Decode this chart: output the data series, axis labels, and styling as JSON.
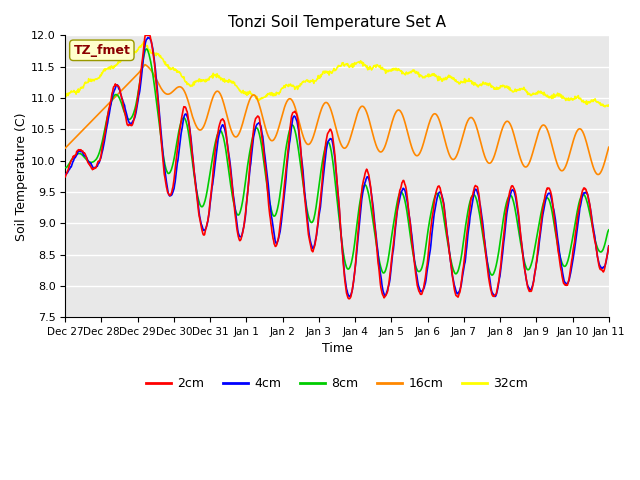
{
  "title": "Tonzi Soil Temperature Set A",
  "xlabel": "Time",
  "ylabel": "Soil Temperature (C)",
  "ylim": [
    7.5,
    12.0
  ],
  "background_color": "#ffffff",
  "plot_bg_color": "#e8e8e8",
  "grid_color": "#ffffff",
  "legend_label": "TZ_fmet",
  "legend_box_color": "#ffffcc",
  "legend_box_edge": "#999900",
  "series_colors": {
    "2cm": "#ff0000",
    "4cm": "#0000ff",
    "8cm": "#00cc00",
    "16cm": "#ff8800",
    "32cm": "#ffff00"
  },
  "xtick_labels": [
    "Dec 27",
    "Dec 28",
    "Dec 29",
    "Dec 30",
    "Dec 31",
    "Jan 1",
    "Jan 2",
    "Jan 3",
    "Jan 4",
    "Jan 5",
    "Jan 6",
    "Jan 7",
    "Jan 8",
    "Jan 9",
    "Jan 10",
    "Jan 11"
  ],
  "yticks": [
    7.5,
    8.0,
    8.5,
    9.0,
    9.5,
    10.0,
    10.5,
    11.0,
    11.5,
    12.0
  ]
}
